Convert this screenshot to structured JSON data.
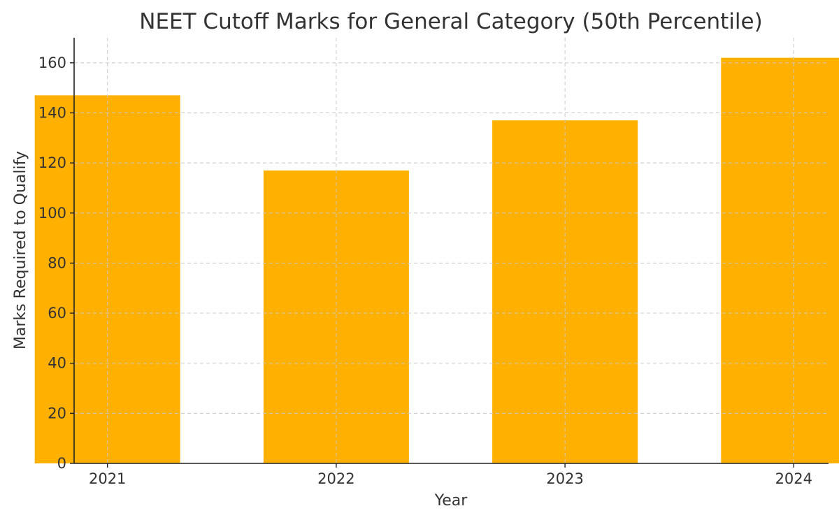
{
  "chart_data": {
    "type": "bar",
    "title": "NEET Cutoff Marks for General Category (50th Percentile)",
    "xlabel": "Year",
    "ylabel": "Marks Required to Qualify",
    "categories": [
      "2021",
      "2022",
      "2023",
      "2024"
    ],
    "values": [
      147,
      117,
      137,
      162
    ],
    "ylim": [
      0,
      170
    ],
    "yticks": [
      0,
      20,
      40,
      60,
      80,
      100,
      120,
      140,
      160
    ],
    "grid": true,
    "grid_style": "dashed",
    "legend": "none",
    "bar_color": "#FFB000"
  }
}
